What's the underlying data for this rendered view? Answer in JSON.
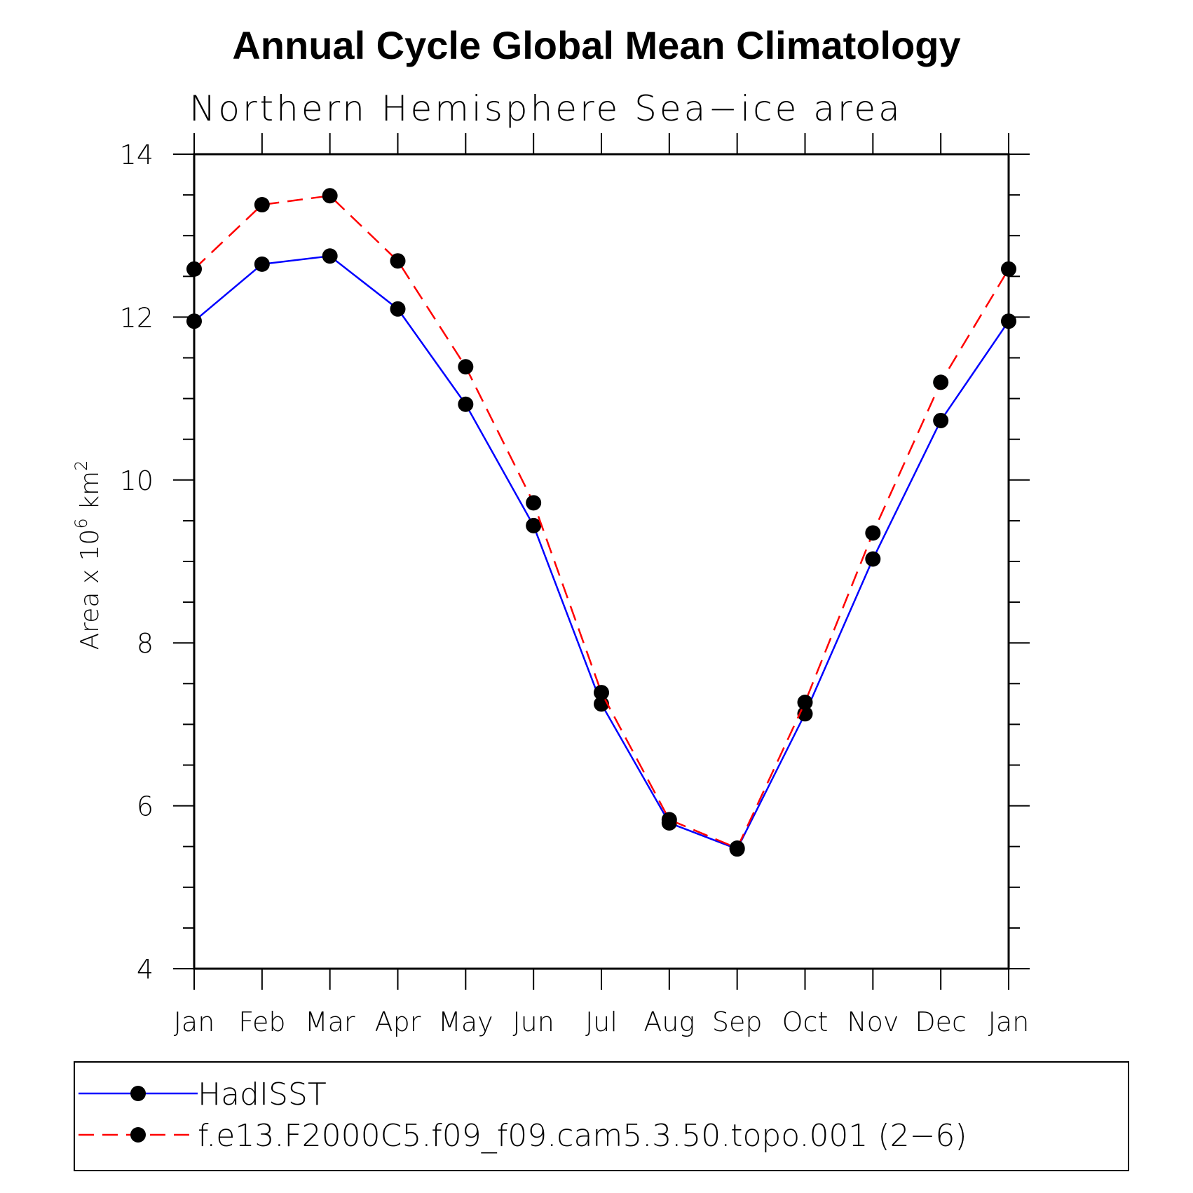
{
  "chart_data": {
    "type": "line",
    "title": "Annual Cycle Global Mean Climatology",
    "subtitle": "Northern Hemisphere Sea−ice area",
    "ylabel": {
      "main": "Area x 10",
      "exp": "6",
      "unit": " km",
      "unit_exp": "2"
    },
    "xlabel": "",
    "categories": [
      "Jan",
      "Feb",
      "Mar",
      "Apr",
      "May",
      "Jun",
      "Jul",
      "Aug",
      "Sep",
      "Oct",
      "Nov",
      "Dec",
      "Jan"
    ],
    "ylim": [
      4,
      14
    ],
    "yticks": [
      4,
      6,
      8,
      10,
      12,
      14
    ],
    "yticks_minor_step": 0.5,
    "grid": false,
    "legend_placement": "bottom",
    "series": [
      {
        "name": "HadISST",
        "color": "#0000ff",
        "dash": "solid",
        "marker_color": "#000000",
        "values": [
          11.95,
          12.65,
          12.75,
          12.1,
          10.93,
          9.44,
          7.25,
          5.79,
          5.47,
          7.13,
          9.03,
          10.73,
          11.95
        ]
      },
      {
        "name": "f.e13.F2000C5.f09_f09.cam5.3.50.topo.001 (2−6)",
        "color": "#ff0000",
        "dash": "dashed",
        "marker_color": "#000000",
        "values": [
          12.59,
          13.38,
          13.49,
          12.69,
          11.39,
          9.72,
          7.39,
          5.83,
          5.48,
          7.27,
          9.35,
          11.2,
          12.59
        ]
      }
    ]
  }
}
